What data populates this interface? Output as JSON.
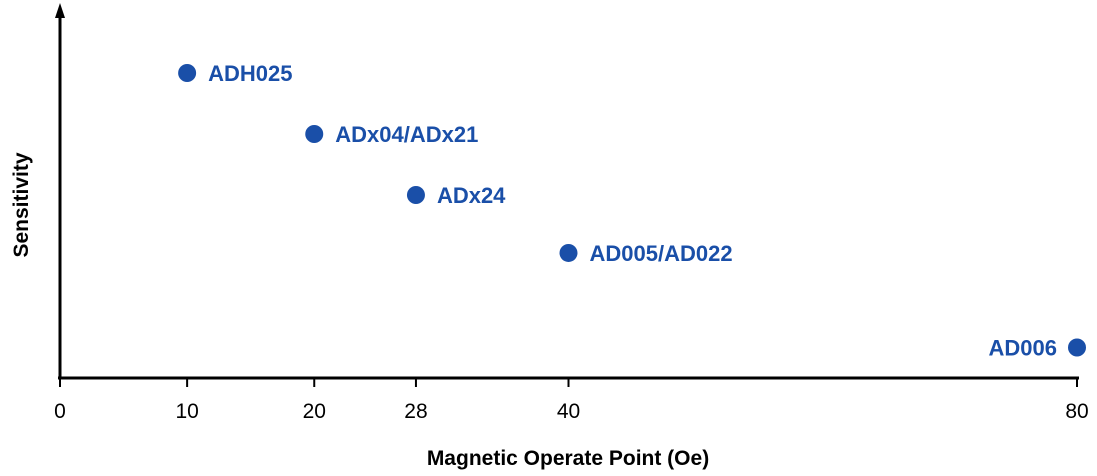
{
  "chart_data": {
    "type": "scatter",
    "title": "",
    "xlabel": "Magnetic Operate Point (Oe)",
    "ylabel": "Sensitivity",
    "xlim": [
      0,
      80
    ],
    "ylim": [
      0,
      6
    ],
    "x_ticks": [
      0,
      10,
      20,
      28,
      40,
      80
    ],
    "y_ticks": [],
    "grid": false,
    "legend": "none",
    "marker_color": "#1a4fa8",
    "label_color": "#1a4fa8",
    "points": [
      {
        "label": "ADH025",
        "x": 10,
        "y": 5.0,
        "label_side": "right"
      },
      {
        "label": "ADx04/ADx21",
        "x": 20,
        "y": 4.0,
        "label_side": "right"
      },
      {
        "label": "ADx24",
        "x": 28,
        "y": 3.0,
        "label_side": "right"
      },
      {
        "label": "AD005/AD022",
        "x": 40,
        "y": 2.05,
        "label_side": "right"
      },
      {
        "label": "AD006",
        "x": 80,
        "y": 0.5,
        "label_side": "left"
      }
    ]
  }
}
